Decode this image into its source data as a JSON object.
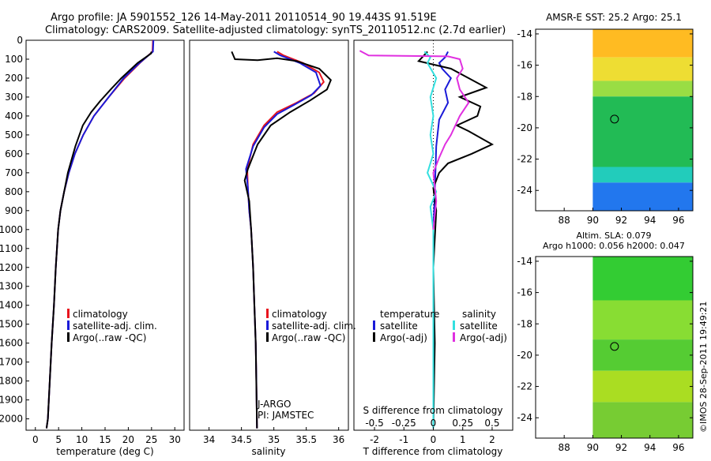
{
  "header": {
    "line1": "Argo profile: JA 5901552_126 14-May-2011 20110514_90 19.443S 91.519E",
    "line2": "Climatology: CARS2009. Satellite-adjusted climatology: synTS_20110512.nc (2.7d earlier)"
  },
  "colors": {
    "climatology": "#e8141e",
    "satellite": "#1a1ad8",
    "argo": "#000000",
    "salinity_satellite": "#33e0e0",
    "salinity_argo": "#e030e0"
  },
  "chart_data": [
    {
      "id": "temperature",
      "type": "line",
      "xlabel": "temperature (deg C)",
      "ylabel": "",
      "xlim": [
        -2,
        32
      ],
      "ylim": [
        2060,
        0
      ],
      "xticks": [
        0,
        5,
        10,
        15,
        20,
        25,
        30
      ],
      "yticks": [
        0,
        100,
        200,
        300,
        400,
        500,
        600,
        700,
        800,
        900,
        1000,
        1100,
        1200,
        1300,
        1400,
        1500,
        1600,
        1700,
        1800,
        1900,
        2000
      ],
      "legend": {
        "placement": "lower-middle",
        "entries": [
          "climatology",
          "satellite-adj. clim.",
          "Argo(..raw -QC)"
        ]
      },
      "series": [
        {
          "name": "climatology",
          "color_key": "climatology",
          "x": [
            25.3,
            25.2,
            22.5,
            19.2,
            15.8,
            12.6,
            10.3,
            8.5,
            7.2,
            6.2,
            5.4,
            4.9,
            4.4,
            4.0,
            3.5,
            3.1,
            2.7,
            2.4
          ],
          "y": [
            0,
            60,
            120,
            200,
            300,
            400,
            500,
            600,
            700,
            800,
            900,
            1000,
            1200,
            1400,
            1600,
            1800,
            2000,
            2050
          ]
        },
        {
          "name": "satellite-adj. clim.",
          "color_key": "satellite",
          "x": [
            25.4,
            25.3,
            22.4,
            19.0,
            15.8,
            12.6,
            10.3,
            8.5,
            7.2,
            6.2,
            5.4,
            4.9,
            4.4,
            4.0,
            3.5,
            3.1,
            2.7,
            2.4
          ],
          "y": [
            0,
            60,
            120,
            200,
            300,
            400,
            500,
            600,
            700,
            800,
            900,
            1000,
            1200,
            1400,
            1600,
            1800,
            2000,
            2050
          ]
        },
        {
          "name": "Argo(..raw -QC)",
          "color_key": "argo",
          "x": [
            25.0,
            24.9,
            22.0,
            18.5,
            16.2,
            14.0,
            12.0,
            10.2,
            8.6,
            7.0,
            6.2,
            5.4,
            4.9,
            4.4,
            4.0,
            3.5,
            3.1,
            2.7,
            2.4
          ],
          "y": [
            60,
            70,
            120,
            200,
            260,
            320,
            380,
            450,
            560,
            700,
            800,
            900,
            1000,
            1200,
            1400,
            1600,
            1800,
            2000,
            2050
          ]
        }
      ]
    },
    {
      "id": "salinity",
      "type": "line",
      "xlabel": "salinity",
      "ylabel": "",
      "xlim": [
        33.7,
        36.15
      ],
      "ylim": [
        2060,
        0
      ],
      "xticks": [
        34,
        34.5,
        35,
        35.5,
        36
      ],
      "yticks": [
        0,
        100,
        200,
        300,
        400,
        500,
        600,
        700,
        800,
        900,
        1000,
        1100,
        1200,
        1300,
        1400,
        1500,
        1600,
        1700,
        1800,
        1900,
        2000
      ],
      "legend": {
        "placement": "lower-middle",
        "entries": [
          "climatology",
          "satellite-adj. clim.",
          "Argo(..raw -QC)"
        ]
      },
      "annotation": [
        "J-ARGO",
        "PI: JAMSTEC"
      ],
      "series": [
        {
          "name": "climatology",
          "color_key": "climatology",
          "x": [
            35.05,
            35.15,
            35.45,
            35.7,
            35.77,
            35.62,
            35.35,
            35.05,
            34.85,
            34.68,
            34.59,
            34.6,
            34.62,
            34.65,
            34.68,
            34.7,
            34.72,
            34.73,
            34.74
          ],
          "y": [
            60,
            80,
            120,
            170,
            220,
            280,
            330,
            380,
            450,
            550,
            680,
            780,
            900,
            1000,
            1200,
            1400,
            1600,
            1800,
            2050
          ]
        },
        {
          "name": "satellite-adj. clim.",
          "color_key": "satellite",
          "x": [
            35.0,
            35.1,
            35.4,
            35.65,
            35.72,
            35.58,
            35.32,
            35.05,
            34.85,
            34.68,
            34.57,
            34.6,
            34.62,
            34.65,
            34.68,
            34.7,
            34.72,
            34.73,
            34.74
          ],
          "y": [
            60,
            80,
            120,
            170,
            240,
            290,
            340,
            390,
            460,
            560,
            680,
            780,
            900,
            1000,
            1200,
            1400,
            1600,
            1800,
            2050
          ]
        },
        {
          "name": "Argo(..raw -QC)",
          "color_key": "argo",
          "x": [
            34.35,
            34.4,
            34.75,
            35.05,
            35.35,
            35.7,
            35.88,
            35.82,
            35.55,
            35.25,
            34.95,
            34.75,
            34.6,
            34.55,
            34.62,
            34.65,
            34.68,
            34.7,
            34.72,
            34.74
          ],
          "y": [
            60,
            100,
            105,
            95,
            110,
            150,
            210,
            260,
            320,
            380,
            450,
            550,
            680,
            740,
            850,
            1000,
            1200,
            1400,
            1600,
            2050
          ]
        }
      ]
    },
    {
      "id": "difference",
      "type": "line",
      "xlabel": "T difference from climatology",
      "xlabel_top": "S difference from climatology",
      "ylabel": "",
      "xlim": [
        -2.7,
        2.7
      ],
      "ylim": [
        2060,
        0
      ],
      "xticks": [
        -2,
        -1,
        0,
        1,
        2
      ],
      "xticks_s": [
        -0.5,
        -0.25,
        0,
        0.25,
        0.5
      ],
      "legend": {
        "placement": "lower-middle",
        "temperature_title": "temperature",
        "salinity_title": "salinity",
        "temperature_entries": [
          "satellite",
          "Argo(-adj)"
        ],
        "salinity_entries": [
          "satellite",
          "Argo(-adj)"
        ]
      },
      "series": [
        {
          "name": "temperature satellite",
          "color_key": "satellite",
          "x": [
            0.5,
            0.4,
            0.2,
            0.3,
            0.6,
            0.4,
            0.5,
            0.2,
            0.1,
            0.05,
            0.0,
            0.0,
            0.0
          ],
          "y": [
            60,
            90,
            120,
            150,
            200,
            260,
            330,
            420,
            560,
            800,
            1000,
            1500,
            2050
          ]
        },
        {
          "name": "temperature Argo(-adj)",
          "color_key": "argo",
          "x": [
            -0.2,
            -0.5,
            0.6,
            1.2,
            1.8,
            0.9,
            1.6,
            1.5,
            0.8,
            1.2,
            2.0,
            1.3,
            0.5,
            0.2,
            0.0,
            0.1,
            0.0,
            0.05,
            0.0
          ],
          "y": [
            60,
            110,
            150,
            200,
            250,
            300,
            350,
            400,
            450,
            480,
            550,
            600,
            650,
            700,
            780,
            900,
            1200,
            1600,
            2050
          ]
        },
        {
          "name": "salinity satellite",
          "color_key": "salinity_satellite",
          "x": [
            -0.3,
            -0.1,
            -0.2,
            0.1,
            -0.1,
            0.0,
            -0.1,
            0.0,
            -0.2,
            0.1,
            -0.1,
            0.0,
            0.0,
            0.0
          ],
          "y": [
            60,
            90,
            120,
            200,
            300,
            400,
            500,
            600,
            700,
            800,
            880,
            1000,
            1500,
            2050
          ]
        },
        {
          "name": "salinity Argo(-adj)",
          "color_key": "salinity_argo",
          "x": [
            -2.5,
            -2.2,
            0.5,
            0.9,
            1.0,
            0.8,
            0.9,
            1.2,
            0.9,
            0.6,
            0.4,
            0.2,
            0.0,
            0.1,
            0.0
          ],
          "y": [
            55,
            80,
            85,
            100,
            150,
            200,
            260,
            330,
            400,
            500,
            550,
            620,
            700,
            850,
            1000
          ]
        }
      ]
    },
    {
      "id": "sst_map",
      "type": "heatmap",
      "title": "AMSR-E SST: 25.2 Argo: 25.1",
      "xlim": [
        86,
        97
      ],
      "ylim": [
        -25.3,
        -13.7
      ],
      "xticks": [
        88,
        90,
        92,
        94,
        96
      ],
      "yticks": [
        -14,
        -16,
        -18,
        -20,
        -22,
        -24
      ],
      "data_xlim": [
        90,
        97
      ],
      "profile_marker": {
        "lon": 91.519,
        "lat": -19.443
      },
      "color_bands": [
        {
          "lat_range": [
            -13.7,
            -15.5
          ],
          "color": "#ffbb22"
        },
        {
          "lat_range": [
            -15.5,
            -17.0
          ],
          "color": "#eedd33"
        },
        {
          "lat_range": [
            -17.0,
            -18.0
          ],
          "color": "#99dd44"
        },
        {
          "lat_range": [
            -18.0,
            -22.5
          ],
          "color": "#22bb55"
        },
        {
          "lat_range": [
            -22.5,
            -23.5
          ],
          "color": "#22ccbb"
        },
        {
          "lat_range": [
            -23.5,
            -25.3
          ],
          "color": "#2277ee"
        }
      ]
    },
    {
      "id": "sla_map",
      "type": "heatmap",
      "title": "Altim. SLA: 0.079",
      "subtitle": "Argo h1000: 0.056 h2000: 0.047",
      "xlim": [
        86,
        97
      ],
      "ylim": [
        -25.3,
        -13.7
      ],
      "xticks": [
        88,
        90,
        92,
        94,
        96
      ],
      "yticks": [
        -14,
        -16,
        -18,
        -20,
        -22,
        -24
      ],
      "data_xlim": [
        90,
        97
      ],
      "profile_marker": {
        "lon": 91.519,
        "lat": -19.443
      },
      "color_bands": [
        {
          "lat_range": [
            -13.7,
            -16.5
          ],
          "color": "#33cc33"
        },
        {
          "lat_range": [
            -16.5,
            -19.0
          ],
          "color": "#88dd33"
        },
        {
          "lat_range": [
            -19.0,
            -21.0
          ],
          "color": "#55cc33"
        },
        {
          "lat_range": [
            -21.0,
            -23.0
          ],
          "color": "#aadd22"
        },
        {
          "lat_range": [
            -23.0,
            -25.3
          ],
          "color": "#77cc33"
        }
      ]
    }
  ],
  "footer": {
    "credit": "©IMOS 28-Sep-2011 19:49:21"
  }
}
